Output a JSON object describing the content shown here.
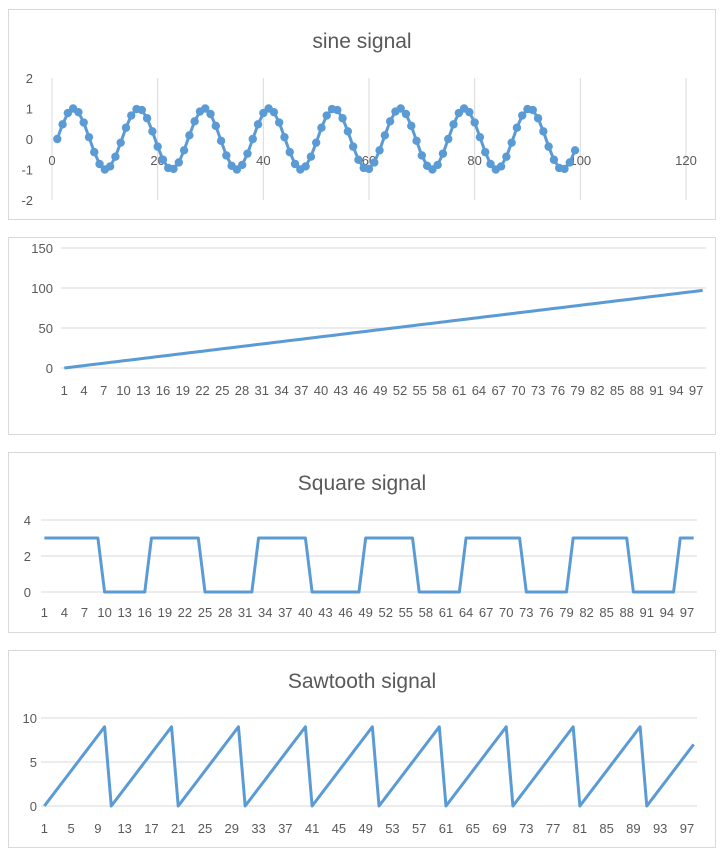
{
  "chart_data": [
    {
      "type": "scatter",
      "title": "sine signal",
      "xlim": [
        0,
        120
      ],
      "ylim": [
        -2,
        2
      ],
      "x_ticks": [
        "0",
        "20",
        "40",
        "60",
        "80",
        "100",
        "120"
      ],
      "y_ticks": [
        "2",
        "1",
        "0",
        "-1",
        "-2"
      ],
      "grid": "vertical",
      "series": [
        {
          "x_start": 1,
          "x_end": 99,
          "amplitude": 1,
          "period": 12.5,
          "values": [
            0,
            0.48,
            0.85,
            1,
            0.88,
            0.54,
            0.06,
            -0.43,
            -0.82,
            -1,
            -0.9,
            -0.58,
            -0.12,
            0.37,
            0.77,
            0.98,
            0.95,
            0.68,
            0.25,
            -0.25,
            -0.68,
            -0.95,
            -0.98,
            -0.77,
            -0.37,
            0.12,
            0.58,
            0.9,
            1,
            0.82,
            0.43,
            -0.06,
            -0.54,
            -0.88,
            -1,
            -0.85,
            -0.48,
            0,
            0.48,
            0.85,
            1,
            0.88,
            0.54,
            0.06,
            -0.43,
            -0.82,
            -1,
            -0.9,
            -0.58,
            -0.12,
            0.37,
            0.77,
            0.98,
            0.95,
            0.68,
            0.25,
            -0.25,
            -0.68,
            -0.95,
            -0.98,
            -0.77,
            -0.37,
            0.12,
            0.58,
            0.9,
            1,
            0.82,
            0.43,
            -0.06,
            -0.54,
            -0.88,
            -1,
            -0.85,
            -0.48,
            0,
            0.48,
            0.85,
            1,
            0.88,
            0.54,
            0.06,
            -0.43,
            -0.82,
            -1,
            -0.9,
            -0.58,
            -0.12,
            0.37,
            0.77,
            0.98,
            0.95,
            0.68,
            0.25,
            -0.25,
            -0.68,
            -0.95,
            -0.98,
            -0.77,
            -0.37
          ]
        }
      ]
    },
    {
      "type": "line",
      "title": "",
      "ylim": [
        0,
        150
      ],
      "y_ticks": [
        "150",
        "100",
        "50",
        "0"
      ],
      "category_count": 98,
      "category_labels": [
        "1",
        "4",
        "7",
        "10",
        "13",
        "16",
        "19",
        "22",
        "25",
        "28",
        "31",
        "34",
        "37",
        "40",
        "43",
        "46",
        "49",
        "52",
        "55",
        "58",
        "61",
        "64",
        "67",
        "70",
        "73",
        "76",
        "79",
        "82",
        "85",
        "88",
        "91",
        "94",
        "97"
      ],
      "grid": "horizontal",
      "series": [
        {
          "start": 0,
          "end": 97,
          "step": 1
        }
      ]
    },
    {
      "type": "line",
      "title": "Square signal",
      "ylim": [
        0,
        4
      ],
      "y_ticks": [
        "4",
        "2",
        "0"
      ],
      "category_count": 98,
      "category_labels": [
        "1",
        "4",
        "7",
        "10",
        "13",
        "16",
        "19",
        "22",
        "25",
        "28",
        "31",
        "34",
        "37",
        "40",
        "43",
        "46",
        "49",
        "52",
        "55",
        "58",
        "61",
        "64",
        "67",
        "70",
        "73",
        "76",
        "79",
        "82",
        "85",
        "88",
        "91",
        "94",
        "97"
      ],
      "grid": "horizontal",
      "series": [
        {
          "high": 3,
          "low": 0,
          "high_ranges": [
            [
              1,
              9
            ],
            [
              17,
              24
            ],
            [
              33,
              40
            ],
            [
              49,
              56
            ],
            [
              64,
              72
            ],
            [
              80,
              88
            ],
            [
              96,
              98
            ]
          ]
        }
      ]
    },
    {
      "type": "line",
      "title": "Sawtooth signal",
      "ylim": [
        0,
        10
      ],
      "y_ticks": [
        "10",
        "5",
        "0"
      ],
      "category_count": 98,
      "category_labels": [
        "1",
        "5",
        "9",
        "13",
        "17",
        "21",
        "25",
        "29",
        "33",
        "37",
        "41",
        "45",
        "49",
        "53",
        "57",
        "61",
        "65",
        "69",
        "73",
        "77",
        "81",
        "85",
        "89",
        "93",
        "97"
      ],
      "grid": "horizontal",
      "series": [
        {
          "min": 0,
          "max": 9,
          "period": 10
        }
      ]
    }
  ]
}
